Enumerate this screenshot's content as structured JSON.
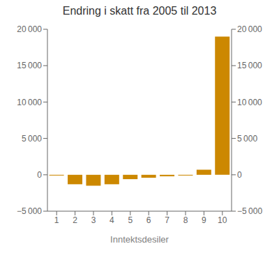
{
  "chart_data": {
    "type": "bar",
    "title": "Endring i skatt fra 2005 til 2013",
    "xlabel": "Inntektsdesiler",
    "categories": [
      1,
      2,
      3,
      4,
      5,
      6,
      7,
      8,
      9,
      10
    ],
    "values": [
      -100,
      -1300,
      -1500,
      -1300,
      -600,
      -400,
      -200,
      -100,
      700,
      19000
    ],
    "color": "#CC8800",
    "ylim": [
      -5000,
      20000
    ],
    "yticks": [
      {
        "value": -5000,
        "label": "−5 000"
      },
      0,
      {
        "value": 5000,
        "label": "5 000"
      },
      {
        "value": 10000,
        "label": "10 000"
      },
      {
        "value": 15000,
        "label": "15 000"
      },
      {
        "value": 20000,
        "label": "20 000"
      }
    ],
    "y2lim": [
      -5000,
      20000
    ],
    "y2ticks": [
      {
        "value": -5000,
        "label": "−5 000"
      },
      0,
      {
        "value": 5000,
        "label": "5 000"
      },
      {
        "value": 10000,
        "label": "10 000"
      },
      {
        "value": 15000,
        "label": "15 000"
      },
      {
        "value": 20000,
        "label": "20 000"
      }
    ],
    "grid": false
  }
}
